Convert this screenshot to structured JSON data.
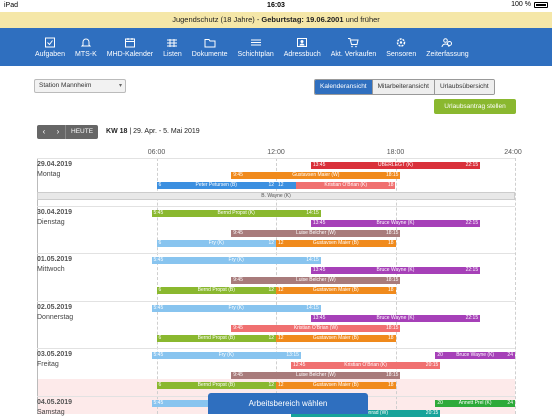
{
  "statusbar": {
    "device": "iPad",
    "time": "16:03",
    "battery": "100 %"
  },
  "notice": {
    "prefix": "Jugendschutz (18 Jahre) - ",
    "bold": "Geburtstag: 19.06.2001",
    "suffix": " und früher"
  },
  "nav": [
    {
      "label": "Aufgaben",
      "icon": "checkbox-icon"
    },
    {
      "label": "MTS-K",
      "icon": "bell-icon"
    },
    {
      "label": "MHD-Kalender",
      "icon": "calendar-icon"
    },
    {
      "label": "Listen",
      "icon": "grid-icon"
    },
    {
      "label": "Dokumente",
      "icon": "folder-icon"
    },
    {
      "label": "Schichtplan",
      "icon": "lines-icon"
    },
    {
      "label": "Adressbuch",
      "icon": "addressbook-icon"
    },
    {
      "label": "Akt. Verkaufen",
      "icon": "cart-icon"
    },
    {
      "label": "Sensoren",
      "icon": "gear-icon"
    },
    {
      "label": "Zeiterfassung",
      "icon": "users-icon"
    }
  ],
  "station": {
    "value": "Station Mannheim"
  },
  "viewtabs": [
    "Kalenderansicht",
    "Mitarbeiteransicht",
    "Urlaubsübersicht"
  ],
  "vacation_button": "Urlaubsantrag stellen",
  "datebar": {
    "today": "HEUTE",
    "week": "KW 18",
    "range": " | 29. Apr. - 5. Mai 2019"
  },
  "hours": [
    "06:00",
    "12:00",
    "18:00",
    "24:00"
  ],
  "days": [
    {
      "date": "29.04.2019",
      "weekday": "Montag"
    },
    {
      "date": "30.04.2019",
      "weekday": "Dienstag"
    },
    {
      "date": "01.05.2019",
      "weekday": "Mittwoch"
    },
    {
      "date": "02.05.2019",
      "weekday": "Donnerstag"
    },
    {
      "date": "03.05.2019",
      "weekday": "Freitag"
    },
    {
      "date": "04.05.2019",
      "weekday": "Samstag"
    }
  ],
  "shifts": [
    {
      "day": 0,
      "row": 0,
      "start": "13:45",
      "end": "22:15",
      "name": "ÜBERLEGT (K)",
      "color": "#d9303a",
      "s": "13:45",
      "e": "22:15"
    },
    {
      "day": 0,
      "row": 1,
      "start": "9:45",
      "end": "18:15",
      "name": "Gustavsen Maier (W)",
      "color": "#f08a1c",
      "s": "9:45",
      "e": "18:15"
    },
    {
      "day": 0,
      "row": 2,
      "start": "6:00",
      "end": "12:00",
      "name": "Peter Petursen (B)",
      "color": "#3b8fe0",
      "s": "6",
      "e": "12"
    },
    {
      "day": 0,
      "row": 2,
      "start": "12:00",
      "end": "13:00",
      "name": "",
      "color": "#3b8fe0",
      "s": "12",
      "e": ""
    },
    {
      "day": 0,
      "row": 2,
      "start": "13:00",
      "end": "18:00",
      "name": "Kristian O'Brian (K)",
      "color": "#f07070",
      "s": "",
      "e": "18"
    },
    {
      "day": 0,
      "row": 3,
      "start": "0:00",
      "end": "24:00",
      "name": "B. Wayne (K)",
      "color": "#e8e8e8",
      "s": "",
      "e": "",
      "dark": true
    },
    {
      "day": 1,
      "row": 0,
      "start": "5:45",
      "end": "14:15",
      "name": "Bernd Propst (K)",
      "color": "#8ab82f",
      "s": "5:45",
      "e": "14:15"
    },
    {
      "day": 1,
      "row": 1,
      "start": "13:45",
      "end": "22:15",
      "name": "Bruce Wayne (K)",
      "color": "#a640b8",
      "s": "13:45",
      "e": "22:15"
    },
    {
      "day": 1,
      "row": 2,
      "start": "9:45",
      "end": "18:15",
      "name": "Luise Belcher (W)",
      "color": "#a87b7b",
      "s": "9:45",
      "e": "18:15"
    },
    {
      "day": 1,
      "row": 3,
      "start": "6:00",
      "end": "12:00",
      "name": "Fry (K)",
      "color": "#88c4ef",
      "s": "6",
      "e": "12"
    },
    {
      "day": 1,
      "row": 3,
      "start": "12:00",
      "end": "18:00",
      "name": "Gustavsen Maier (B)",
      "color": "#f08a1c",
      "s": "12",
      "e": "18"
    },
    {
      "day": 2,
      "row": 0,
      "start": "5:45",
      "end": "14:15",
      "name": "Fry (K)",
      "color": "#88c4ef",
      "s": "5:45",
      "e": "14:15"
    },
    {
      "day": 2,
      "row": 1,
      "start": "13:45",
      "end": "22:15",
      "name": "Bruce Wayne (K)",
      "color": "#a640b8",
      "s": "13:45",
      "e": "22:15"
    },
    {
      "day": 2,
      "row": 2,
      "start": "9:45",
      "end": "18:15",
      "name": "Luise Belcher (W)",
      "color": "#a87b7b",
      "s": "9:45",
      "e": "18:15"
    },
    {
      "day": 2,
      "row": 3,
      "start": "6:00",
      "end": "12:00",
      "name": "Bernd Propst (B)",
      "color": "#8ab82f",
      "s": "6",
      "e": "12"
    },
    {
      "day": 2,
      "row": 3,
      "start": "12:00",
      "end": "18:00",
      "name": "Gustavsen Maier (B)",
      "color": "#f08a1c",
      "s": "12",
      "e": "18"
    },
    {
      "day": 3,
      "row": 0,
      "start": "5:45",
      "end": "14:15",
      "name": "Fry (K)",
      "color": "#88c4ef",
      "s": "5:45",
      "e": "14:15"
    },
    {
      "day": 3,
      "row": 1,
      "start": "13:45",
      "end": "22:15",
      "name": "Bruce Wayne (K)",
      "color": "#a640b8",
      "s": "13:45",
      "e": "22:15"
    },
    {
      "day": 3,
      "row": 2,
      "start": "9:45",
      "end": "18:15",
      "name": "Kristian O'Brian (W)",
      "color": "#f07070",
      "s": "9:45",
      "e": "18:15"
    },
    {
      "day": 3,
      "row": 3,
      "start": "6:00",
      "end": "12:00",
      "name": "Bernd Propst (B)",
      "color": "#8ab82f",
      "s": "6",
      "e": "12"
    },
    {
      "day": 3,
      "row": 3,
      "start": "12:00",
      "end": "18:00",
      "name": "Gustavsen Maier (B)",
      "color": "#f08a1c",
      "s": "12",
      "e": "18"
    },
    {
      "day": 4,
      "row": 0,
      "start": "5:45",
      "end": "13:15",
      "name": "Fry (K)",
      "color": "#88c4ef",
      "s": "5:45",
      "e": "13:15"
    },
    {
      "day": 4,
      "row": 0,
      "start": "20:00",
      "end": "24:00",
      "name": "Bruce Wayne (K)",
      "color": "#a640b8",
      "s": "20",
      "e": "24"
    },
    {
      "day": 4,
      "row": 1,
      "start": "12:45",
      "end": "20:15",
      "name": "Kristian O'Brian (K)",
      "color": "#f07070",
      "s": "12:45",
      "e": "20:15"
    },
    {
      "day": 4,
      "row": 2,
      "start": "9:45",
      "end": "18:15",
      "name": "Luise Belcher (W)",
      "color": "#a87b7b",
      "s": "9:45",
      "e": "18:15"
    },
    {
      "day": 4,
      "row": 3,
      "start": "6:00",
      "end": "12:00",
      "name": "Bernd Propst (B)",
      "color": "#8ab82f",
      "s": "6",
      "e": "12"
    },
    {
      "day": 4,
      "row": 3,
      "start": "12:00",
      "end": "18:00",
      "name": "Gustavsen Maier (B)",
      "color": "#f08a1c",
      "s": "12",
      "e": "18"
    },
    {
      "day": 5,
      "row": 0,
      "start": "5:45",
      "end": "13:15",
      "name": "Fry (K)",
      "color": "#88c4ef",
      "s": "5:45",
      "e": "13:15"
    },
    {
      "day": 5,
      "row": 0,
      "start": "20:00",
      "end": "24:00",
      "name": "Annett Prel (K)",
      "color": "#2eaa3a",
      "s": "20",
      "e": "24"
    },
    {
      "day": 5,
      "row": 1,
      "start": "12:45",
      "end": "20:15",
      "name": "Hermes Conrad (W)",
      "color": "#17a39a",
      "s": "12:45",
      "e": "20:15"
    }
  ],
  "workarea_button": "Arbeitsbereich wählen"
}
